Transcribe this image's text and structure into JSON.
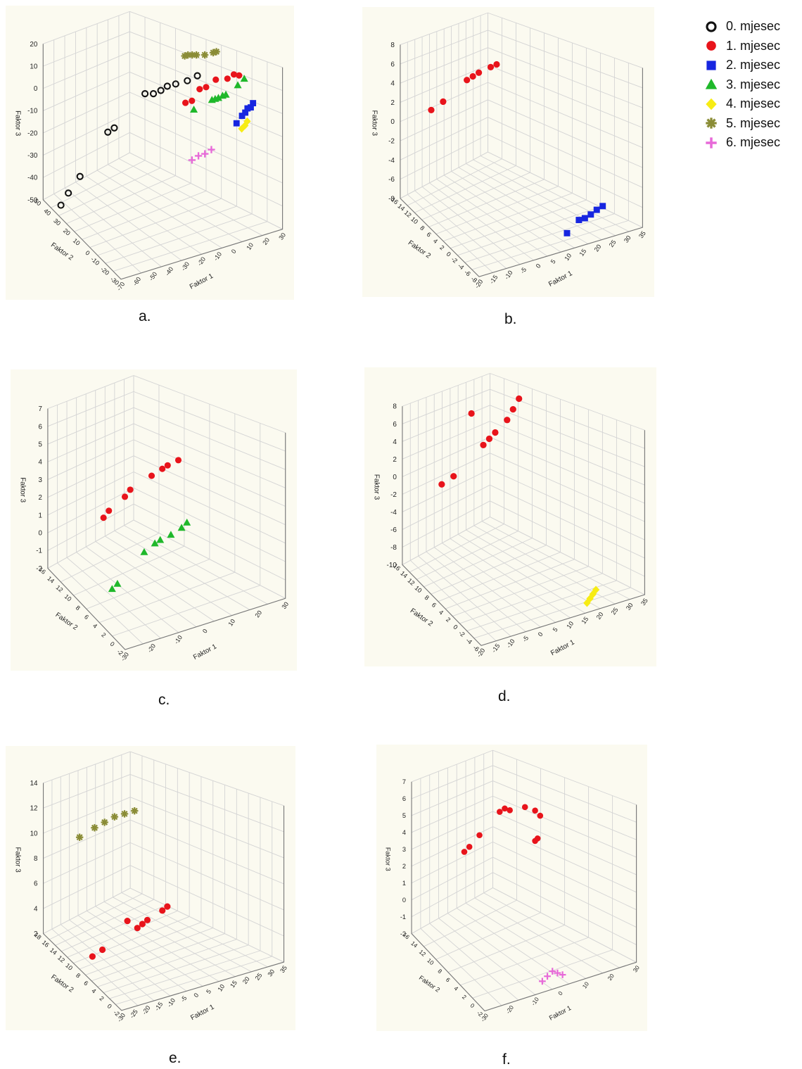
{
  "legend": [
    {
      "label": "0. mjesec",
      "marker": "open-circle",
      "color": "#111111"
    },
    {
      "label": "1. mjesec",
      "marker": "circle",
      "color": "#e8141b"
    },
    {
      "label": "2. mjesec",
      "marker": "square",
      "color": "#1726e0"
    },
    {
      "label": "3. mjesec",
      "marker": "triangle",
      "color": "#1fb82a"
    },
    {
      "label": "4. mjesec",
      "marker": "diamond",
      "color": "#f7ec14"
    },
    {
      "label": "5. mjesec",
      "marker": "asterisk",
      "color": "#8a8c36"
    },
    {
      "label": "6. mjesec",
      "marker": "plus",
      "color": "#e76ad8"
    }
  ],
  "colors": {
    "panel_bg": "#fbfaf0",
    "grid": "#d4d4d4"
  },
  "chart_data": [
    {
      "type": "scatter",
      "panel": "a.",
      "xlabel": "Faktor 1",
      "ylabel": "Faktor 2",
      "zlabel": "Faktor 3",
      "xticks": [
        "-70",
        "-60",
        "-50",
        "-40",
        "-30",
        "-20",
        "-10",
        "0",
        "10",
        "20",
        "30"
      ],
      "yticks": [
        "-30",
        "-20",
        "-10",
        "0",
        "10",
        "20",
        "30",
        "40",
        "50"
      ],
      "zticks": [
        "20",
        "10",
        "0",
        "-10",
        "-20",
        "-30",
        "-40",
        "-50"
      ],
      "series": [
        {
          "month": 0,
          "points": [
            [
              -62,
              45,
              -52
            ],
            [
              -58,
              44,
              -47
            ],
            [
              -52,
              42,
              -40
            ],
            [
              -42,
              30,
              -17
            ],
            [
              -38,
              30,
              -16
            ],
            [
              -22,
              25,
              -2
            ],
            [
              -18,
              23,
              -2
            ],
            [
              -14,
              22,
              -1
            ],
            [
              -10,
              22,
              0
            ],
            [
              -6,
              20,
              1
            ],
            [
              0,
              18,
              2
            ],
            [
              5,
              16,
              4
            ]
          ]
        },
        {
          "month": 1,
          "points": [
            [
              -6,
              10,
              -3
            ],
            [
              -2,
              10,
              -3
            ],
            [
              4,
              12,
              0
            ],
            [
              8,
              12,
              0
            ],
            [
              14,
              12,
              2
            ],
            [
              20,
              10,
              2
            ],
            [
              24,
              10,
              3
            ],
            [
              26,
              8,
              3
            ]
          ]
        },
        {
          "month": 2,
          "points": [
            [
              16,
              -6,
              -10
            ],
            [
              20,
              -5,
              -8
            ],
            [
              22,
              -5,
              -7
            ],
            [
              24,
              -4,
              -6
            ],
            [
              26,
              -4,
              -6
            ],
            [
              28,
              -3,
              -5
            ]
          ]
        },
        {
          "month": 3,
          "points": [
            [
              -2,
              8,
              -6
            ],
            [
              8,
              6,
              -3
            ],
            [
              10,
              6,
              -3
            ],
            [
              12,
              6,
              -3
            ],
            [
              14,
              5,
              -2
            ],
            [
              16,
              5,
              -2
            ],
            [
              24,
              6,
              0
            ],
            [
              28,
              6,
              2
            ]
          ]
        },
        {
          "month": 4,
          "points": [
            [
              18,
              -8,
              -12
            ],
            [
              20,
              -8,
              -11
            ],
            [
              22,
              -7,
              -10
            ]
          ]
        },
        {
          "month": 5,
          "points": [
            [
              2,
              24,
              10
            ],
            [
              4,
              24,
              10
            ],
            [
              6,
              23,
              10
            ],
            [
              8,
              22,
              10
            ],
            [
              12,
              20,
              10
            ],
            [
              16,
              18,
              11
            ],
            [
              18,
              18,
              11
            ]
          ]
        },
        {
          "month": 6,
          "points": [
            [
              -14,
              -10,
              -18
            ],
            [
              -10,
              -10,
              -17
            ],
            [
              -6,
              -10,
              -17
            ],
            [
              -2,
              -10,
              -16
            ]
          ]
        }
      ]
    },
    {
      "type": "scatter",
      "panel": "b.",
      "xlabel": "Faktor 1",
      "ylabel": "Faktor 2",
      "zlabel": "Faktor 3",
      "xticks": [
        "-20",
        "-15",
        "-10",
        "-5",
        "0",
        "5",
        "10",
        "15",
        "20",
        "25",
        "30",
        "35"
      ],
      "yticks": [
        "-8",
        "-6",
        "-4",
        "-2",
        "0",
        "2",
        "4",
        "6",
        "8",
        "10",
        "12",
        "14",
        "16"
      ],
      "zticks": [
        "8",
        "6",
        "4",
        "2",
        "0",
        "-2",
        "-4",
        "-6",
        "-8"
      ],
      "series": [
        {
          "month": 1,
          "points": [
            [
              -14,
              12,
              2
            ],
            [
              -10,
              12,
              2.5
            ],
            [
              -2,
              12,
              4
            ],
            [
              0,
              12,
              4.2
            ],
            [
              2,
              12,
              4.4
            ],
            [
              6,
              12,
              4.6
            ],
            [
              8,
              12,
              4.7
            ]
          ]
        },
        {
          "month": 2,
          "points": [
            [
              14,
              -4,
              -8
            ],
            [
              18,
              -4,
              -7
            ],
            [
              20,
              -4,
              -7
            ],
            [
              22,
              -4,
              -6.8
            ],
            [
              24,
              -4,
              -6.5
            ],
            [
              26,
              -4,
              -6.3
            ]
          ]
        }
      ]
    },
    {
      "type": "scatter",
      "panel": "c.",
      "xlabel": "Faktor 1",
      "ylabel": "Faktor 2",
      "zlabel": "Faktor 3",
      "xticks": [
        "-30",
        "-20",
        "-10",
        "0",
        "10",
        "20",
        "30"
      ],
      "yticks": [
        "-2",
        "0",
        "2",
        "4",
        "6",
        "8",
        "10",
        "12",
        "14",
        "16"
      ],
      "zticks": [
        "7",
        "6",
        "5",
        "4",
        "3",
        "2",
        "1",
        "0",
        "-1",
        "-2"
      ],
      "series": [
        {
          "month": 1,
          "points": [
            [
              -22,
              8,
              2.5
            ],
            [
              -20,
              8,
              2.8
            ],
            [
              -14,
              8,
              3.3
            ],
            [
              -12,
              8,
              3.6
            ],
            [
              -4,
              8,
              4
            ],
            [
              0,
              8,
              4.2
            ],
            [
              2,
              8,
              4.3
            ],
            [
              6,
              8,
              4.4
            ]
          ]
        },
        {
          "month": 3,
          "points": [
            [
              -22,
              6,
              -1
            ],
            [
              -20,
              6,
              -0.8
            ],
            [
              -10,
              6,
              0.5
            ],
            [
              -6,
              6,
              0.8
            ],
            [
              -4,
              6,
              0.9
            ],
            [
              0,
              6,
              1
            ],
            [
              4,
              6,
              1.2
            ],
            [
              6,
              6,
              1.4
            ]
          ]
        }
      ]
    },
    {
      "type": "scatter",
      "panel": "d.",
      "xlabel": "Faktor 1",
      "ylabel": "Faktor 2",
      "zlabel": "Faktor 3",
      "xticks": [
        "-20",
        "-15",
        "-10",
        "-5",
        "0",
        "5",
        "10",
        "15",
        "20",
        "25",
        "30",
        "35"
      ],
      "yticks": [
        "-6",
        "-4",
        "-2",
        "0",
        "2",
        "4",
        "6",
        "8",
        "10",
        "12",
        "14",
        "16"
      ],
      "zticks": [
        "8",
        "6",
        "4",
        "2",
        "0",
        "-2",
        "-4",
        "-6",
        "-8",
        "-10"
      ],
      "series": [
        {
          "month": 1,
          "points": [
            [
              -14,
              10,
              1
            ],
            [
              -10,
              10,
              1.5
            ],
            [
              -4,
              10,
              8
            ],
            [
              0,
              10,
              4
            ],
            [
              2,
              10,
              4.5
            ],
            [
              4,
              10,
              5
            ],
            [
              8,
              10,
              6
            ],
            [
              10,
              10,
              7
            ],
            [
              12,
              10,
              8
            ]
          ]
        },
        {
          "month": 4,
          "points": [
            [
              18,
              -4,
              -10
            ],
            [
              19,
              -4,
              -9.6
            ],
            [
              20,
              -4,
              -9.2
            ],
            [
              21,
              -4,
              -8.8
            ]
          ]
        }
      ]
    },
    {
      "type": "scatter",
      "panel": "e.",
      "xlabel": "Faktor 1",
      "ylabel": "Faktor 2",
      "zlabel": "Faktor 3",
      "xticks": [
        "-30",
        "-25",
        "-20",
        "-15",
        "-10",
        "-5",
        "0",
        "5",
        "10",
        "15",
        "20",
        "25",
        "30",
        "35"
      ],
      "yticks": [
        "-2",
        "0",
        "2",
        "4",
        "6",
        "8",
        "10",
        "12",
        "14",
        "16",
        "18"
      ],
      "zticks": [
        "14",
        "12",
        "10",
        "8",
        "6",
        "4",
        "2"
      ],
      "series": [
        {
          "month": 1,
          "points": [
            [
              -26,
              8,
              3
            ],
            [
              -22,
              8,
              3.3
            ],
            [
              -12,
              8,
              5
            ],
            [
              -8,
              8,
              4.2
            ],
            [
              -6,
              8,
              4.4
            ],
            [
              -4,
              8,
              4.6
            ],
            [
              2,
              8,
              5
            ],
            [
              4,
              8,
              5.2
            ]
          ]
        },
        {
          "month": 5,
          "points": [
            [
              -28,
              10,
              12
            ],
            [
              -22,
              10,
              12.4
            ],
            [
              -18,
              10,
              12.6
            ],
            [
              -14,
              10,
              12.8
            ],
            [
              -10,
              10,
              12.8
            ],
            [
              -6,
              10,
              12.8
            ]
          ]
        }
      ]
    },
    {
      "type": "scatter",
      "panel": "f.",
      "xlabel": "Faktor 1",
      "ylabel": "Faktor 2",
      "zlabel": "Faktor 3",
      "xticks": [
        "-30",
        "-20",
        "-10",
        "0",
        "10",
        "20",
        "30"
      ],
      "yticks": [
        "-2",
        "0",
        "2",
        "4",
        "6",
        "8",
        "10",
        "12",
        "14",
        "16"
      ],
      "zticks": [
        "7",
        "6",
        "5",
        "4",
        "3",
        "2",
        "1",
        "0",
        "-1",
        "-2"
      ],
      "series": [
        {
          "month": 1,
          "points": [
            [
              -22,
              8,
              4.5
            ],
            [
              -20,
              8,
              4.7
            ],
            [
              -16,
              8,
              5.2
            ],
            [
              -8,
              8,
              6.2
            ],
            [
              -6,
              8,
              6.3
            ],
            [
              -4,
              8,
              6.1
            ],
            [
              2,
              8,
              6
            ],
            [
              6,
              8,
              5.6
            ],
            [
              8,
              8,
              5.2
            ],
            [
              6,
              8,
              3.8
            ],
            [
              7,
              8,
              3.9
            ]
          ]
        },
        {
          "month": 6,
          "points": [
            [
              -4,
              0,
              -2
            ],
            [
              -2,
              0,
              -1.8
            ],
            [
              0,
              0,
              -1.6
            ],
            [
              2,
              0,
              -1.8
            ],
            [
              4,
              0,
              -2
            ]
          ]
        }
      ]
    }
  ],
  "captions": [
    "a.",
    "b.",
    "c.",
    "d.",
    "e.",
    "f."
  ]
}
